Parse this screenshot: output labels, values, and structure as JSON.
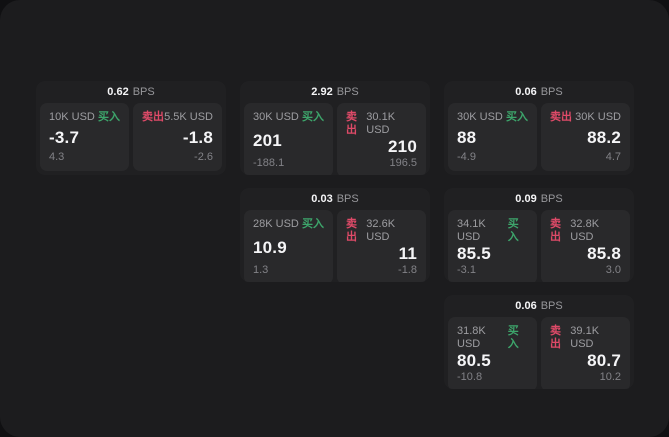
{
  "labels": {
    "bps": "BPS",
    "buy": "买入",
    "sell": "卖出"
  },
  "colors": {
    "canvas_bg": "#1c1c1e",
    "card_bg": "#202022",
    "panel_bg": "#29292b",
    "buy_green": "#3da56b",
    "sell_red": "#df4a68",
    "primary_text": "#f5f5f7",
    "muted_text": "#9d9da1",
    "dim_text": "#828287"
  },
  "cards": [
    {
      "bps": "0.62",
      "buy": {
        "amount": "10K USD",
        "value": "-3.7",
        "delta": "4.3"
      },
      "sell": {
        "amount": "5.5K USD",
        "value": "-1.8",
        "delta": "-2.6"
      }
    },
    {
      "bps": "2.92",
      "buy": {
        "amount": "30K USD",
        "value": "201",
        "delta": "-188.1"
      },
      "sell": {
        "amount": "30.1K USD",
        "value": "210",
        "delta": "196.5"
      }
    },
    {
      "bps": "0.06",
      "buy": {
        "amount": "30K USD",
        "value": "88",
        "delta": "-4.9"
      },
      "sell": {
        "amount": "30K USD",
        "value": "88.2",
        "delta": "4.7"
      }
    },
    {
      "bps": "0.03",
      "buy": {
        "amount": "28K USD",
        "value": "10.9",
        "delta": "1.3"
      },
      "sell": {
        "amount": "32.6K USD",
        "value": "11",
        "delta": "-1.8"
      }
    },
    {
      "bps": "0.09",
      "buy": {
        "amount": "34.1K USD",
        "value": "85.5",
        "delta": "-3.1"
      },
      "sell": {
        "amount": "32.8K USD",
        "value": "85.8",
        "delta": "3.0"
      }
    },
    {
      "bps": "0.06",
      "buy": {
        "amount": "31.8K USD",
        "value": "80.5",
        "delta": "-10.8"
      },
      "sell": {
        "amount": "39.1K USD",
        "value": "80.7",
        "delta": "10.2"
      }
    }
  ]
}
